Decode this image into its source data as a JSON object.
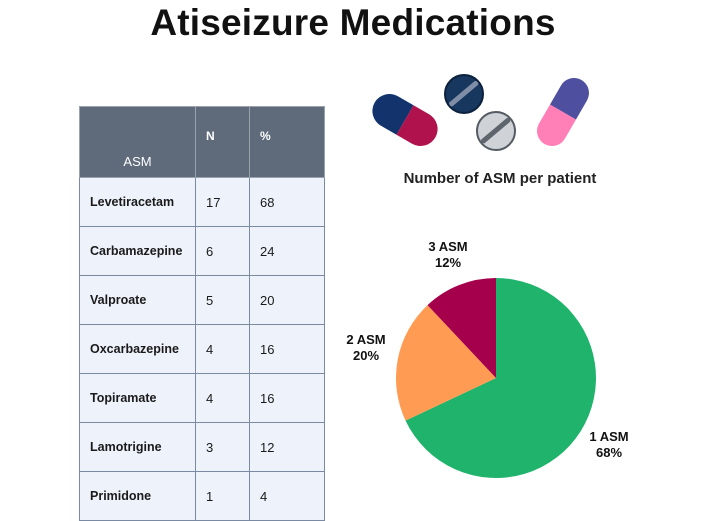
{
  "title": "Atiseizure Medications",
  "table": {
    "headers": [
      "ASM",
      "N",
      "%"
    ],
    "rows": [
      {
        "asm": "Levetiracetam",
        "n": "17",
        "pct": "68"
      },
      {
        "asm": "Carbamazepine",
        "n": "6",
        "pct": "24"
      },
      {
        "asm": "Valproate",
        "n": "5",
        "pct": "20"
      },
      {
        "asm": "Oxcarbazepine",
        "n": "4",
        "pct": "16"
      },
      {
        "asm": "Topiramate",
        "n": "4",
        "pct": "16"
      },
      {
        "asm": "Lamotrigine",
        "n": "3",
        "pct": "12"
      },
      {
        "asm": "Primidone",
        "n": "1",
        "pct": "4"
      }
    ]
  },
  "icons": [
    "capsule-icon",
    "tablet-icon",
    "tablet-icon",
    "capsule-icon"
  ],
  "chart_data": {
    "type": "pie",
    "title": "Number of ASM per patient",
    "slices": [
      {
        "label": "1 ASM",
        "value": 68,
        "value_label": "68%",
        "color": "#1fb36b"
      },
      {
        "label": "2 ASM",
        "value": 20,
        "value_label": "20%",
        "color": "#ff9b52"
      },
      {
        "label": "3 ASM",
        "value": 12,
        "value_label": "12%",
        "color": "#a5004b"
      }
    ],
    "start": "12 o'clock",
    "direction": "clockwise"
  }
}
